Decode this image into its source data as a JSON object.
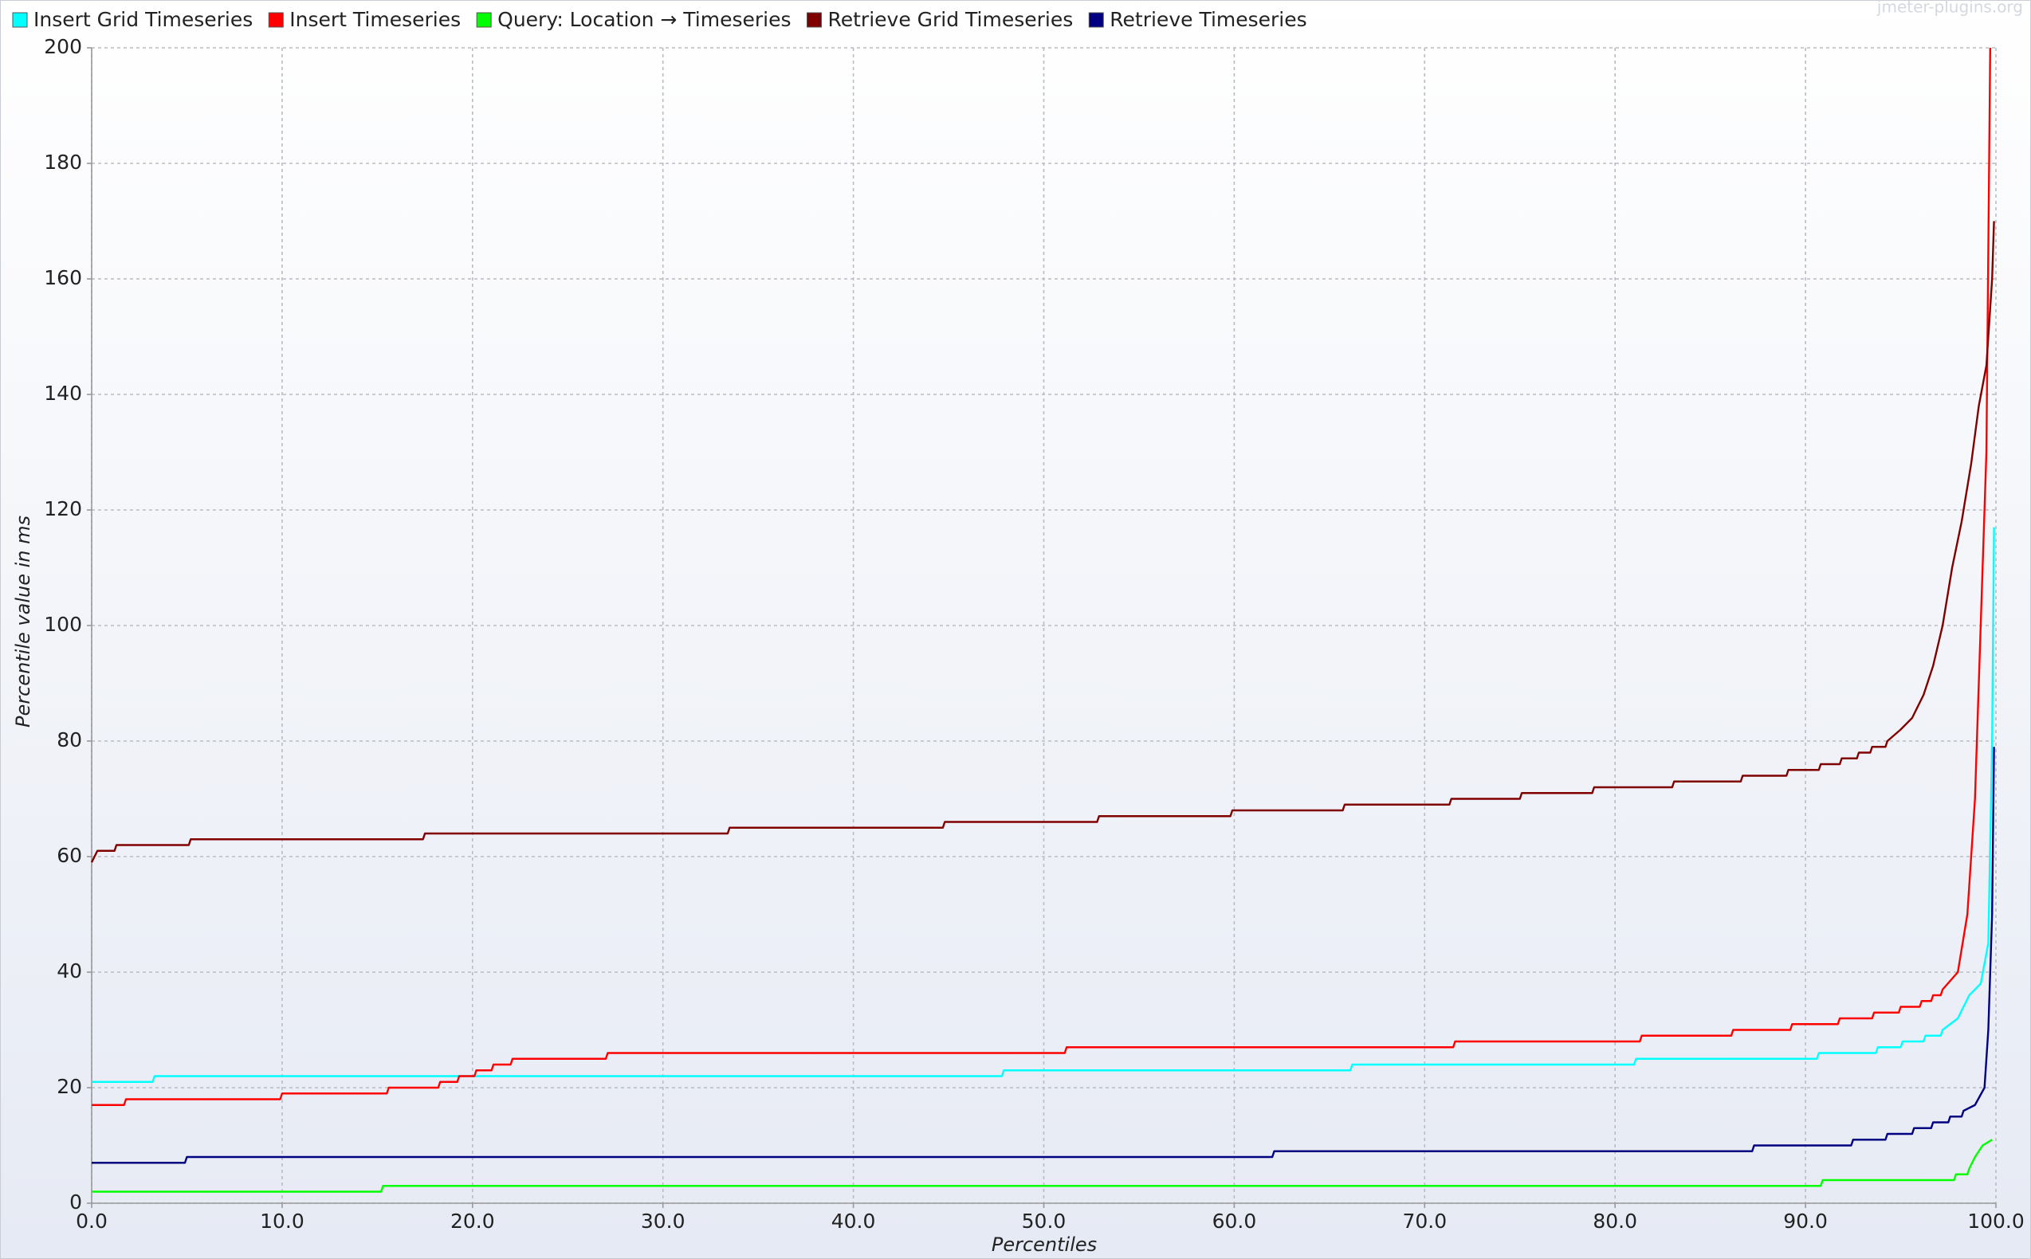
{
  "chart_data": {
    "type": "line",
    "watermark": "jmeter-plugins.org",
    "xlabel": "Percentiles",
    "ylabel": "Percentile value in ms",
    "xlim": [
      0,
      100
    ],
    "ylim": [
      0,
      200
    ],
    "xticks": [
      {
        "value": 0,
        "label": "0.0"
      },
      {
        "value": 10,
        "label": "10.0"
      },
      {
        "value": 20,
        "label": "20.0"
      },
      {
        "value": 30,
        "label": "30.0"
      },
      {
        "value": 40,
        "label": "40.0"
      },
      {
        "value": 50,
        "label": "50.0"
      },
      {
        "value": 60,
        "label": "60.0"
      },
      {
        "value": 70,
        "label": "70.0"
      },
      {
        "value": 80,
        "label": "80.0"
      },
      {
        "value": 90,
        "label": "90.0"
      },
      {
        "value": 100,
        "label": "100.0"
      }
    ],
    "yticks": [
      0,
      20,
      40,
      60,
      80,
      100,
      120,
      140,
      160,
      180,
      200
    ],
    "grid": true,
    "legend": "top",
    "series": [
      {
        "name": "Insert Grid Timeseries",
        "color": "#00ffff",
        "x": [
          0,
          3.2,
          3.3,
          47.8,
          47.9,
          66.1,
          66.2,
          81,
          81.1,
          90.6,
          90.7,
          93.7,
          93.8,
          95,
          95.1,
          96.2,
          96.3,
          97.1,
          97.2,
          98,
          98.6,
          99.2,
          99.6,
          99.8,
          99.9
        ],
        "values": [
          21,
          21,
          22,
          22,
          23,
          23,
          24,
          24,
          25,
          25,
          26,
          26,
          27,
          27,
          28,
          28,
          29,
          29,
          30,
          32,
          36,
          38,
          45,
          80,
          117
        ]
      },
      {
        "name": "Insert Timeseries",
        "color": "#ff0000",
        "x": [
          0,
          1.7,
          1.8,
          9.9,
          10,
          15.5,
          15.6,
          18.2,
          18.3,
          19.2,
          19.3,
          20.1,
          20.2,
          21,
          21.1,
          22,
          22.1,
          27,
          27.1,
          51.1,
          51.2,
          71.5,
          71.6,
          81.3,
          81.4,
          86.1,
          86.2,
          89.2,
          89.3,
          91.7,
          91.8,
          93.5,
          93.6,
          94.9,
          95,
          96,
          96.1,
          96.6,
          96.7,
          97.1,
          97.2,
          98,
          98.5,
          98.9,
          99.2,
          99.5,
          99.7
        ],
        "values": [
          17,
          17,
          18,
          18,
          19,
          19,
          20,
          20,
          21,
          21,
          22,
          22,
          23,
          23,
          24,
          24,
          25,
          25,
          26,
          26,
          27,
          27,
          28,
          28,
          29,
          29,
          30,
          30,
          31,
          31,
          32,
          32,
          33,
          33,
          34,
          34,
          35,
          35,
          36,
          36,
          37,
          40,
          50,
          70,
          100,
          130,
          200
        ]
      },
      {
        "name": "Query: Location → Timeseries",
        "color": "#00ff00",
        "x": [
          0,
          15.2,
          15.3,
          90.8,
          90.9,
          97.8,
          97.9,
          98.5,
          98.6,
          98.9,
          99.3,
          99.8
        ],
        "values": [
          2,
          2,
          3,
          3,
          4,
          4,
          5,
          5,
          6,
          8,
          10,
          11
        ]
      },
      {
        "name": "Retrieve Grid Timeseries",
        "color": "#800000",
        "x": [
          0,
          0.3,
          1.2,
          1.3,
          5.1,
          5.2,
          17.4,
          17.5,
          33.4,
          33.5,
          44.7,
          44.8,
          52.8,
          52.9,
          59.8,
          59.9,
          65.7,
          65.8,
          71.3,
          71.4,
          75,
          75.1,
          78.8,
          78.9,
          83,
          83.1,
          86.6,
          86.7,
          89,
          89.1,
          90.7,
          90.8,
          91.8,
          91.9,
          92.7,
          92.8,
          93.4,
          93.5,
          94.2,
          94.3,
          95,
          95.6,
          96.2,
          96.7,
          97.2,
          97.7,
          98.2,
          98.7,
          99.1,
          99.5,
          99.8,
          99.9
        ],
        "values": [
          59,
          61,
          61,
          62,
          62,
          63,
          63,
          64,
          64,
          65,
          65,
          66,
          66,
          67,
          67,
          68,
          68,
          69,
          69,
          70,
          70,
          71,
          71,
          72,
          72,
          73,
          73,
          74,
          74,
          75,
          75,
          76,
          76,
          77,
          77,
          78,
          78,
          79,
          79,
          80,
          82,
          84,
          88,
          93,
          100,
          110,
          118,
          128,
          138,
          145,
          160,
          170
        ]
      },
      {
        "name": "Retrieve Timeseries",
        "color": "#000080",
        "x": [
          0,
          4.9,
          5,
          62,
          62.1,
          87.2,
          87.3,
          92.4,
          92.5,
          94.2,
          94.3,
          95.6,
          95.7,
          96.6,
          96.7,
          97.5,
          97.6,
          98.2,
          98.3,
          98.9,
          99.4,
          99.6,
          99.8,
          99.9
        ],
        "values": [
          7,
          7,
          8,
          8,
          9,
          9,
          10,
          10,
          11,
          11,
          12,
          12,
          13,
          13,
          14,
          14,
          15,
          15,
          16,
          17,
          20,
          30,
          50,
          79
        ]
      }
    ]
  }
}
